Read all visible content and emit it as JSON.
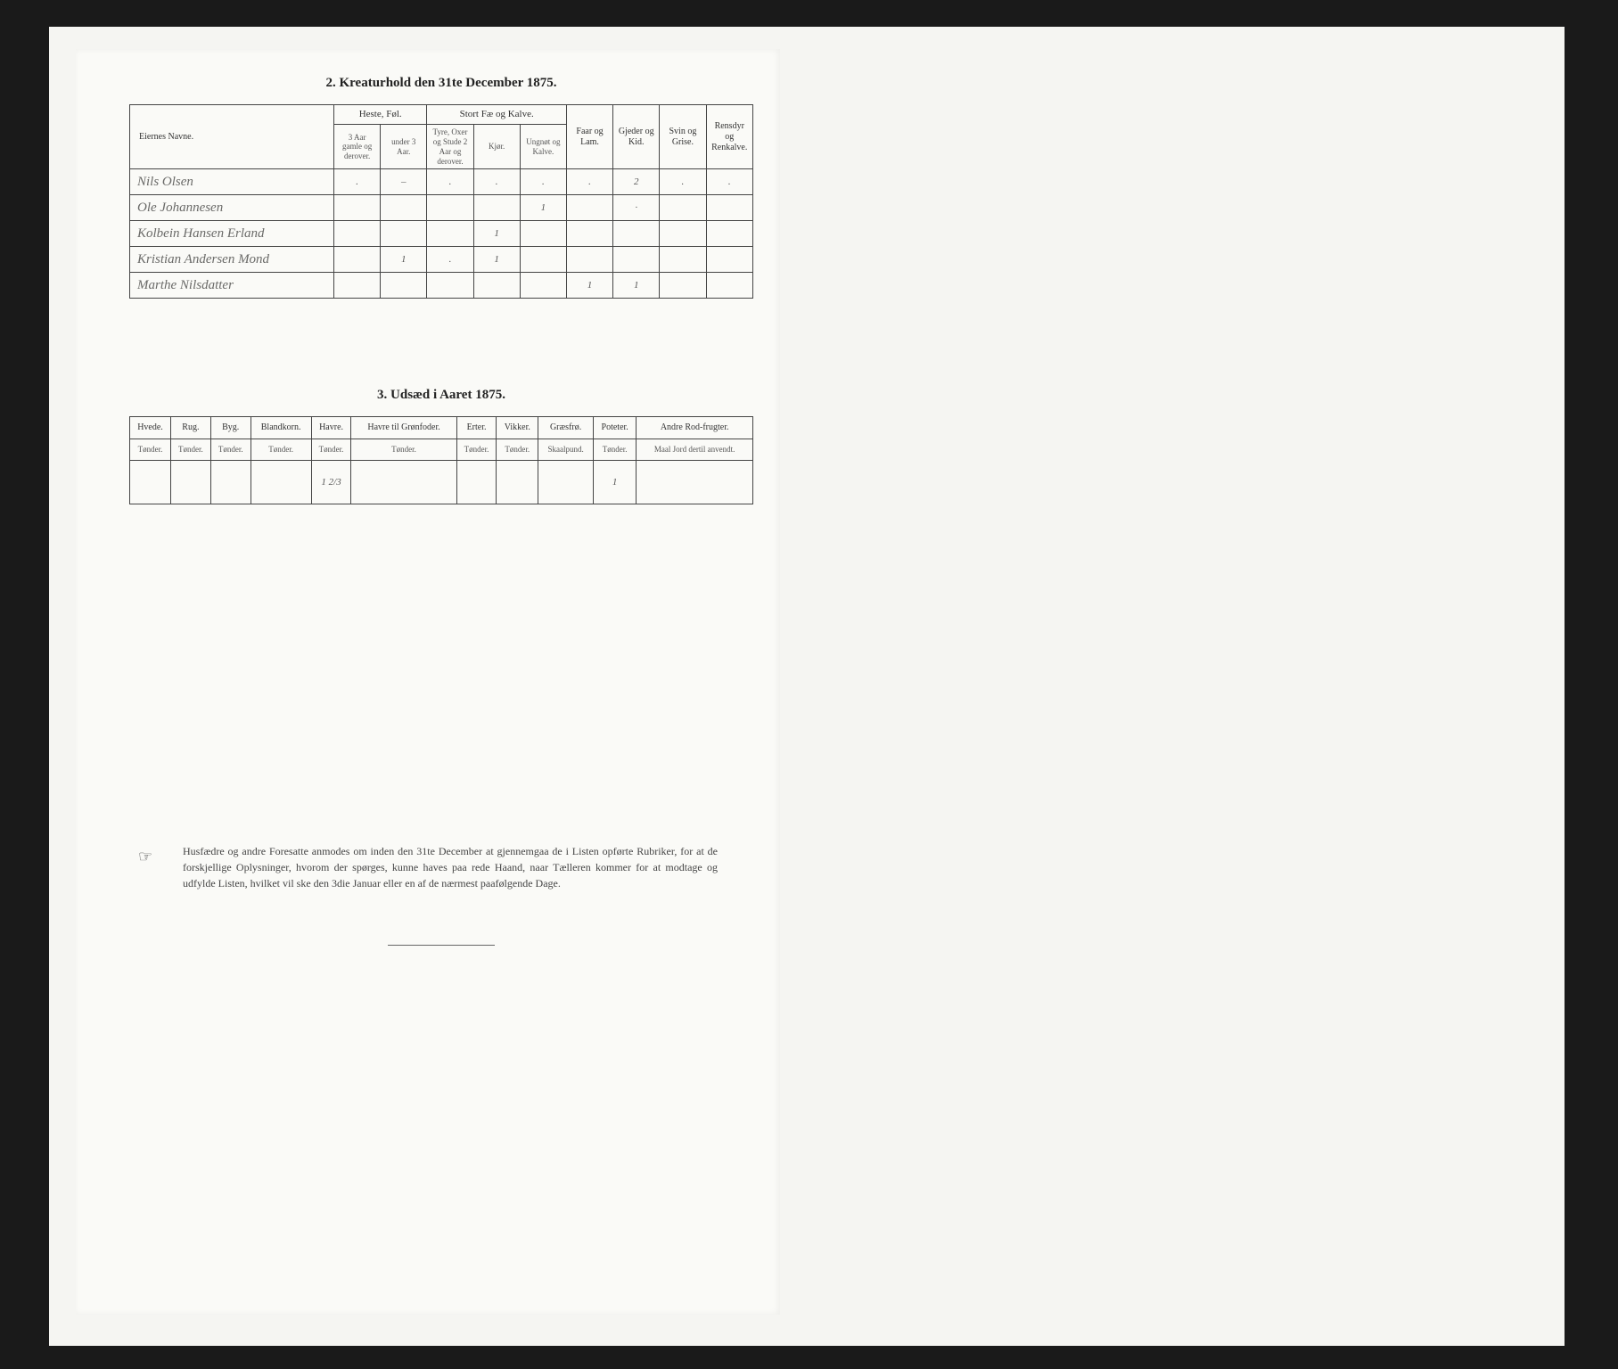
{
  "section1": {
    "title": "2.  Kreaturhold den 31te December 1875.",
    "headers": {
      "owner": "Eiernes Navne.",
      "horses_group": "Heste, Føl.",
      "horses_a": "3 Aar gamle og derover.",
      "horses_b": "under 3 Aar.",
      "cattle_group": "Stort Fæ og Kalve.",
      "cattle_a": "Tyre, Oxer og Stude 2 Aar og derover.",
      "cattle_b": "Kjør.",
      "cattle_c": "Ungnøt og Kalve.",
      "sheep": "Faar og Lam.",
      "goats": "Gjeder og Kid.",
      "pigs": "Svin og Grise.",
      "reindeer": "Rensdyr og Renkalve."
    },
    "rows": [
      {
        "name": "Nils Olsen",
        "c": [
          ".",
          "–",
          ".",
          ".",
          ".",
          ".",
          "2",
          ".",
          "."
        ]
      },
      {
        "name": "Ole Johannesen",
        "c": [
          "",
          "",
          "",
          "",
          "1",
          "",
          "·",
          "",
          ""
        ]
      },
      {
        "name": "Kolbein Hansen Erland",
        "c": [
          "",
          "",
          "",
          "1",
          "",
          "",
          "",
          "",
          ""
        ]
      },
      {
        "name": "Kristian Andersen Mond",
        "c": [
          "",
          "1",
          ".",
          "1",
          "",
          "",
          "",
          "",
          ""
        ]
      },
      {
        "name": "Marthe Nilsdatter",
        "c": [
          "",
          "",
          "",
          "",
          "",
          "1",
          "1",
          "",
          ""
        ]
      }
    ]
  },
  "section2": {
    "title": "3.  Udsæd i Aaret 1875.",
    "columns": [
      {
        "h": "Hvede.",
        "s": "Tønder."
      },
      {
        "h": "Rug.",
        "s": "Tønder."
      },
      {
        "h": "Byg.",
        "s": "Tønder."
      },
      {
        "h": "Blandkorn.",
        "s": "Tønder."
      },
      {
        "h": "Havre.",
        "s": "Tønder."
      },
      {
        "h": "Havre til Grønfoder.",
        "s": "Tønder."
      },
      {
        "h": "Erter.",
        "s": "Tønder."
      },
      {
        "h": "Vikker.",
        "s": "Tønder."
      },
      {
        "h": "Græsfrø.",
        "s": "Skaalpund."
      },
      {
        "h": "Poteter.",
        "s": "Tønder."
      },
      {
        "h": "Andre Rod-frugter.",
        "s": "Maal Jord dertil anvendt."
      }
    ],
    "row": [
      "",
      "",
      "",
      "",
      "1 2/3",
      "",
      "",
      "",
      "",
      "1",
      ""
    ]
  },
  "footer": {
    "text": "Husfædre og andre Foresatte anmodes om inden den 31te December at gjennemgaa de i Listen opførte Rubriker, for at de forskjellige Oplysninger, hvorom der spørges, kunne haves paa rede Haand, naar Tælleren kommer for at modtage og udfylde Listen, hvilket vil ske den 3die Januar eller en af de nærmest paafølgende Dage."
  },
  "colors": {
    "page_bg": "#f5f5f2",
    "doc_bg": "#fafaf7",
    "border": "#444444",
    "text": "#222222",
    "handwriting": "#6a6a68"
  }
}
